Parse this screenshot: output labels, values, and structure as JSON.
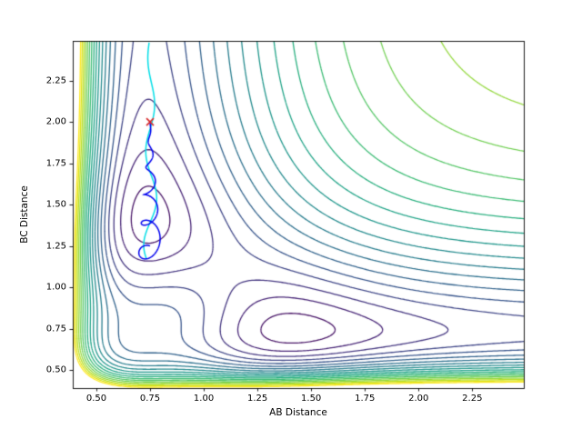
{
  "chart_data": {
    "type": "contour",
    "title": "",
    "xlabel": "AB Distance",
    "ylabel": "BC Distance",
    "xlim": [
      0.39,
      2.49
    ],
    "ylim": [
      0.39,
      2.49
    ],
    "xticks": [
      0.5,
      0.75,
      1.0,
      1.25,
      1.5,
      1.75,
      2.0,
      2.25
    ],
    "yticks": [
      0.5,
      0.75,
      1.0,
      1.25,
      1.5,
      1.75,
      2.0,
      2.25
    ],
    "tick_decimals": 2,
    "grid": false,
    "colormap": "viridis",
    "surface": {
      "model": "morse_sum_plus_corner_repulsion",
      "formula": "V(x,y)=(1-exp(-a(x-re)))^2+(1-exp(-a(y-re)))^2+A*exp(-((x-re)^2+(y-re)^2)/w^2)",
      "re": 0.742,
      "a": 2.3,
      "A": 1.1,
      "w": 0.45
    },
    "levels": [
      0.7,
      0.774,
      0.847,
      0.921,
      0.995,
      1.068,
      1.142,
      1.216,
      1.289,
      1.363,
      1.437,
      1.511,
      1.584,
      1.658,
      1.732,
      1.805,
      1.879,
      1.953,
      2.026,
      2.1
    ],
    "level_colors": [
      "#440154",
      "#481567",
      "#482677",
      "#453781",
      "#404788",
      "#39568c",
      "#33638d",
      "#2d708e",
      "#287d8e",
      "#238a8d",
      "#1f968b",
      "#20a387",
      "#29af7f",
      "#3cbb75",
      "#55c667",
      "#73d055",
      "#95d840",
      "#b8de29",
      "#dce319",
      "#fde725"
    ],
    "trajectories": [
      {
        "name": "cyan-path",
        "color": "#00dde6",
        "model": {
          "x_center": 0.753,
          "y_start": 2.48,
          "y_end": 1.17,
          "amp_base": 0.012,
          "amp_growth": 0.022,
          "cycles": 2.3,
          "phase": 3.8
        }
      },
      {
        "name": "blue-trajectory",
        "color": "#0000ee",
        "model": {
          "x_center": 0.75,
          "y_start": 2.0,
          "drop": 0.75,
          "x_amp": 0.055,
          "y_amp": 0.09,
          "cycles": 5
        }
      }
    ],
    "start_marker": {
      "x": 0.75,
      "y": 2.0,
      "symbol": "x",
      "color": "#d62728",
      "size": 8
    }
  }
}
